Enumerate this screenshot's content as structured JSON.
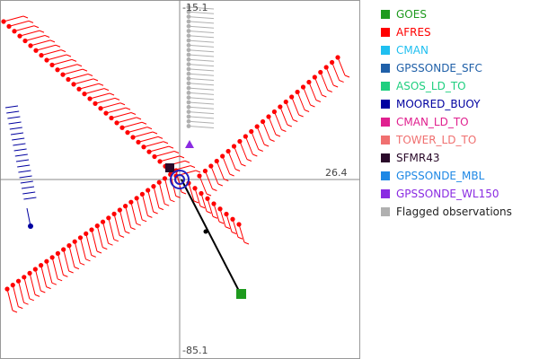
{
  "chart_data": {
    "type": "scatter",
    "title": "",
    "axis_labels": {
      "top": "-15.1",
      "bottom": "-85.1",
      "right": "26.4"
    },
    "grid": false,
    "legend_position": "right",
    "center_marker_color": "#2020c0",
    "series": [
      {
        "name": "GOES",
        "color": "#1e9a1e"
      },
      {
        "name": "AFRES",
        "color": "#ff0000"
      },
      {
        "name": "CMAN",
        "color": "#1fbff0"
      },
      {
        "name": "GPSSONDE_SFC",
        "color": "#2060a8"
      },
      {
        "name": "ASOS_LD_TO",
        "color": "#1fcf7f"
      },
      {
        "name": "MOORED_BUOY",
        "color": "#0000a0"
      },
      {
        "name": "CMAN_LD_TO",
        "color": "#e0208f"
      },
      {
        "name": "TOWER_LD_TO",
        "color": "#f07070"
      },
      {
        "name": "SFMR43",
        "color": "#2a0a2a"
      },
      {
        "name": "GPSSONDE_MBL",
        "color": "#1e88e5"
      },
      {
        "name": "GPSSONDE_WL150",
        "color": "#8a2be2"
      },
      {
        "name": "Flagged observations",
        "color": "#b0b0b0"
      }
    ]
  }
}
